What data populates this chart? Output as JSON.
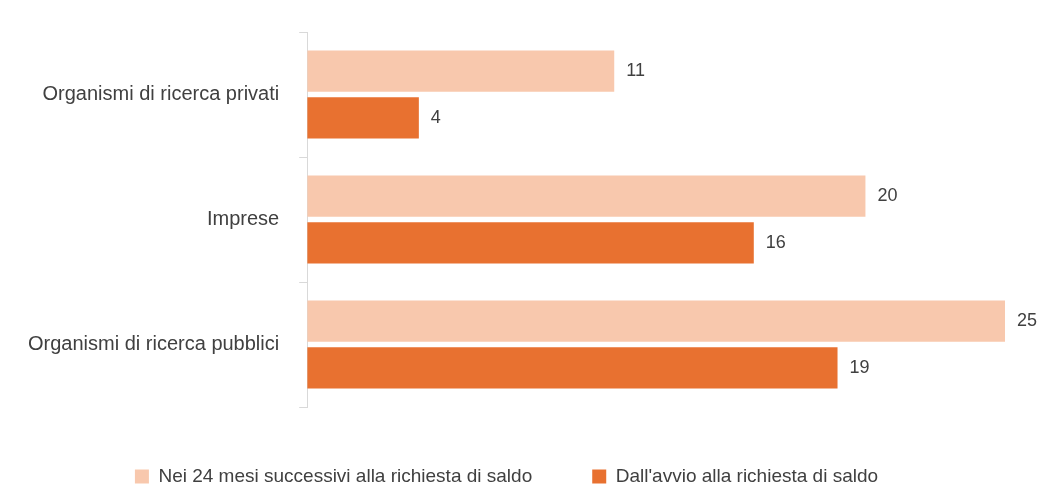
{
  "chart_data": {
    "type": "bar",
    "orientation": "horizontal",
    "categories": [
      "Organismi di ricerca privati",
      "Imprese",
      "Organismi di ricerca pubblici"
    ],
    "series": [
      {
        "name": "Nei 24 mesi successivi alla richiesta di saldo",
        "color": "#f8c8ad",
        "values": [
          11,
          20,
          25
        ]
      },
      {
        "name": "Dall'avvio alla richiesta di saldo",
        "color": "#e87130",
        "values": [
          4,
          16,
          19
        ]
      }
    ],
    "xlim": [
      0,
      25
    ],
    "tick_labels": "y",
    "data_labels": true,
    "legend": "bottom"
  }
}
